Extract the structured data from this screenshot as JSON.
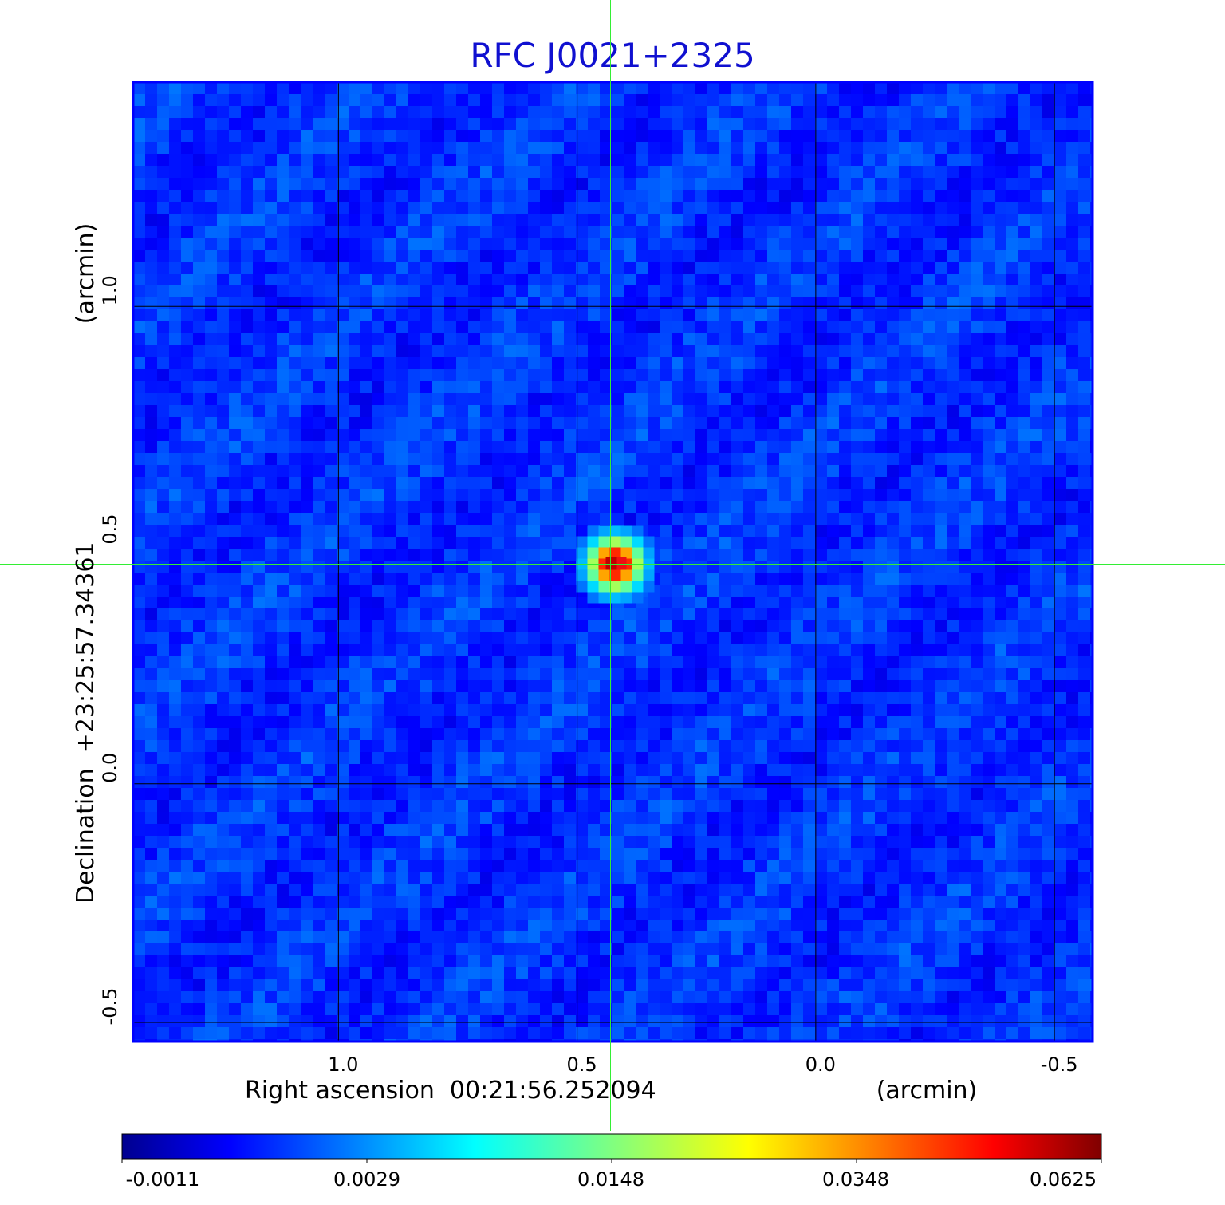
{
  "chart_data": {
    "type": "heatmap",
    "title": "RFC J0021+2325",
    "xlabel": "Right ascension  00:21:56.252094",
    "xunit": "(arcmin)",
    "ylabel": "Declination  +23:25:57.34361",
    "yunit": "(arcmin)",
    "xlim": [
      1.43,
      -0.58
    ],
    "ylim": [
      -0.54,
      1.47
    ],
    "x_reversed": true,
    "xticks": [
      1.0,
      0.5,
      0.0,
      -0.5
    ],
    "xtick_labels": [
      "1.0",
      "0.5",
      "0.0",
      "-0.5"
    ],
    "yticks": [
      1.0,
      0.5,
      0.0,
      -0.5
    ],
    "ytick_labels": [
      "1.0",
      "0.5",
      "0.0",
      "-0.5"
    ],
    "grid": true,
    "crosshair": {
      "x": 0.43,
      "y": 0.46
    },
    "source_peak": {
      "x": 0.42,
      "y": 0.46,
      "value": 0.0625
    },
    "colormap": "jet",
    "colorbar": {
      "ticks": [
        -0.0011,
        0.0029,
        0.0148,
        0.0348,
        0.0625
      ],
      "tick_labels": [
        "-0.0011",
        "0.0029",
        "0.0148",
        "0.0348",
        "0.0625"
      ]
    }
  },
  "colors": {
    "title": "#1010d0",
    "frame": "#0000ff",
    "crosshair": "#33ee33",
    "grid": "#000000",
    "background_field": "#1a52f0"
  }
}
